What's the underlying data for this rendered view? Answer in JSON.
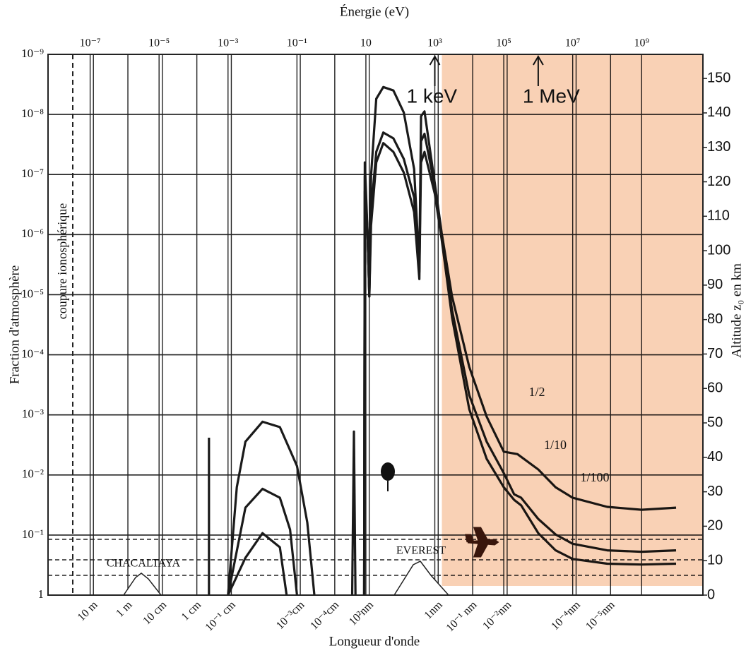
{
  "chart_data": {
    "type": "line",
    "x_label": "Énergie (eV)",
    "y_label": "Fraction d'atmosphère",
    "y2_label": "Altitude z₀ en km",
    "x2_label": "Longueur d'onde",
    "xlog": true,
    "ylog": true,
    "y_inverted": true,
    "grid": true,
    "xlim": [
      6e-09,
      60000000000.0
    ],
    "ylim": [
      1e-09,
      1
    ],
    "y2lim": [
      0,
      157
    ],
    "x2lim": [
      207,
      2.1e-17
    ],
    "xticks": [
      {
        "value": 1e-07,
        "label": "10⁻⁷"
      },
      {
        "value": 1e-05,
        "label": "10⁻⁵"
      },
      {
        "value": 0.001,
        "label": "10⁻³"
      },
      {
        "value": 0.1,
        "label": "10⁻¹"
      },
      10,
      {
        "value": 1000,
        "label": "10³"
      },
      {
        "value": 100000,
        "label": "10⁵"
      },
      {
        "value": 10000000,
        "label": "10⁷"
      },
      {
        "value": 1000000000,
        "label": "10⁹"
      }
    ],
    "x2ticks": [
      {
        "value": 10,
        "label": "10 m"
      },
      {
        "value": 1,
        "label": "1 m"
      },
      {
        "value": 0.1,
        "label": "10 cm"
      },
      {
        "value": 0.01,
        "label": "1 cm"
      },
      {
        "value": 0.001,
        "label": "10⁻¹ cm"
      },
      {
        "value": 1e-05,
        "label": "10⁻³cm"
      },
      {
        "value": 1e-06,
        "label": "10⁻⁴cm"
      },
      {
        "value": 1e-07,
        "label": "10²nm"
      },
      {
        "value": 1e-09,
        "label": "1nm"
      },
      {
        "value": 1e-10,
        "label": "10⁻¹ nm"
      },
      {
        "value": 1e-11,
        "label": "10⁻²nm"
      },
      {
        "value": 1e-13,
        "label": "10⁻⁴nm"
      },
      {
        "value": 1e-14,
        "label": "10⁻⁵nm"
      }
    ],
    "yticks": [
      {
        "value": 1e-09,
        "label": "10⁻⁹"
      },
      {
        "value": 1e-08,
        "label": "10⁻⁸"
      },
      {
        "value": 1e-07,
        "label": "10⁻⁷"
      },
      {
        "value": 1e-06,
        "label": "10⁻⁶"
      },
      {
        "value": 1e-05,
        "label": "10⁻⁵"
      },
      {
        "value": 0.0001,
        "label": "10⁻⁴"
      },
      {
        "value": 0.001,
        "label": "10⁻³"
      },
      {
        "value": 0.01,
        "label": "10⁻²"
      },
      {
        "value": 0.1,
        "label": "10⁻¹"
      },
      1
    ],
    "y2ticks": [
      0,
      10,
      20,
      30,
      40,
      50,
      60,
      70,
      80,
      90,
      100,
      110,
      120,
      130,
      140,
      150
    ],
    "series": [
      {
        "name": "1/2",
        "color": "#1a1a1a",
        "x": [
          0.00028,
          0.00028,
          null,
          0.001,
          0.0018,
          0.0032,
          0.01,
          0.032,
          0.1,
          0.2,
          0.32,
          null,
          4,
          4.5,
          5,
          null,
          8.9,
          9.3,
          11.2,
          12.6,
          14.1,
          20,
          32,
          63,
          126,
          251,
          355,
          398,
          501,
          1000,
          1580,
          3160,
          10000,
          32000,
          100000,
          250000,
          1000000,
          3200000,
          10000000,
          100000000,
          1000000000,
          10000000000
        ],
        "values": [
          1,
          0.0024,
          null,
          1,
          0.016,
          0.0028,
          0.0013,
          0.0016,
          0.0071,
          0.062,
          1,
          null,
          1,
          0.0019,
          1,
          null,
          1,
          6.3e-08,
          9.3e-07,
          1.07e-05,
          1.07e-07,
          5.5e-09,
          3.5e-09,
          4e-09,
          9.3e-09,
          8.1e-08,
          3.6e-06,
          1.07e-08,
          8.9e-09,
          1.4e-07,
          9.3e-07,
          1.07e-05,
          0.00016,
          0.00107,
          0.0041,
          0.0045,
          0.0081,
          0.016,
          0.024,
          0.034,
          0.038,
          0.035
        ]
      },
      {
        "name": "1/10",
        "color": "#1a1a1a",
        "x": [
          0.001,
          0.0032,
          0.01,
          0.032,
          0.063,
          0.1,
          null,
          8.9,
          9.3,
          11.2,
          12.6,
          14.1,
          20,
          32,
          63,
          126,
          251,
          355,
          398,
          501,
          1000,
          1580,
          3160,
          10000,
          32000,
          100000,
          200000,
          320000,
          1000000,
          3200000,
          10000000,
          100000000,
          1000000000,
          10000000000
        ],
        "values": [
          1,
          0.035,
          0.017,
          0.024,
          0.081,
          1,
          null,
          1,
          1.07e-07,
          9.3e-07,
          1.07e-05,
          4.2e-07,
          4.2e-08,
          2e-08,
          2.5e-08,
          5.5e-08,
          2.4e-07,
          4.2e-06,
          2.8e-08,
          2.1e-08,
          1.6e-07,
          1.07e-06,
          1.8e-05,
          0.00047,
          0.0028,
          0.0093,
          0.021,
          0.024,
          0.054,
          0.098,
          0.14,
          0.18,
          0.19,
          0.18
        ]
      },
      {
        "name": "1/100",
        "color": "#1a1a1a",
        "x": [
          0.001,
          0.0032,
          0.01,
          0.032,
          0.05,
          null,
          8.9,
          9.3,
          11.2,
          12.6,
          14.1,
          20,
          32,
          63,
          126,
          251,
          355,
          398,
          501,
          1000,
          1580,
          3160,
          10000,
          32000,
          100000,
          200000,
          320000,
          1000000,
          3200000,
          10000000,
          100000000,
          1000000000,
          10000000000
        ],
        "values": [
          1,
          0.24,
          0.093,
          0.16,
          1,
          null,
          1,
          1.9e-07,
          9.3e-07,
          1.07e-05,
          7.1e-07,
          6.3e-08,
          3e-08,
          4.2e-08,
          9.3e-08,
          4.2e-07,
          5.5e-06,
          6.3e-08,
          4.2e-08,
          2.1e-07,
          1.2e-06,
          2.4e-05,
          0.00081,
          0.0054,
          0.016,
          0.026,
          0.032,
          0.093,
          0.18,
          0.25,
          0.3,
          0.31,
          0.3
        ]
      }
    ],
    "annotations": [
      {
        "text": "1 keV",
        "x": 1000
      },
      {
        "text": "1 MeV",
        "x": 1000000
      }
    ],
    "labels": {
      "cutoff": "coupure ionosphérique",
      "chacaltaya": "CHACALTAYA",
      "everest": "EVEREST"
    }
  }
}
